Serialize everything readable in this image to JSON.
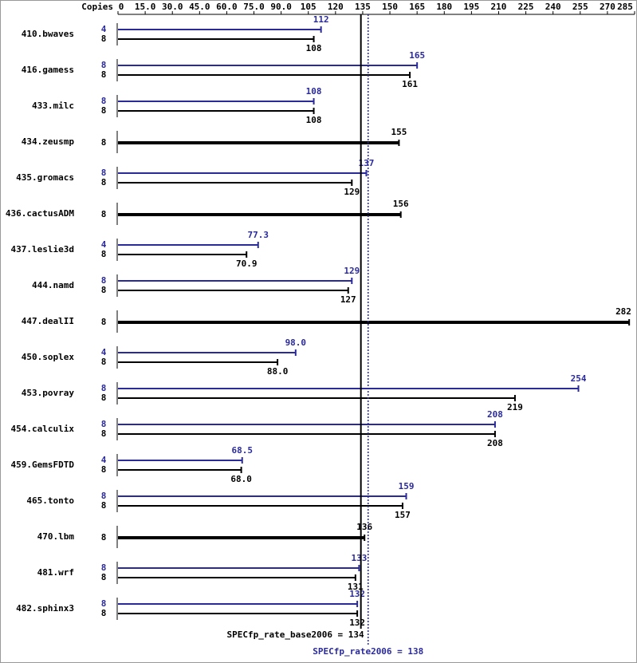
{
  "chart_data": {
    "type": "bar",
    "orientation": "horizontal",
    "copies_header": "Copies",
    "categories": [
      "410.bwaves",
      "416.gamess",
      "433.milc",
      "434.zeusmp",
      "435.gromacs",
      "436.cactusADM",
      "437.leslie3d",
      "444.namd",
      "447.dealII",
      "450.soplex",
      "453.povray",
      "454.calculix",
      "459.GemsFDTD",
      "465.tonto",
      "470.lbm",
      "481.wrf",
      "482.sphinx3"
    ],
    "series": [
      {
        "color": "#2a2a9a",
        "copies": [
          4,
          8,
          8,
          null,
          8,
          null,
          4,
          8,
          null,
          4,
          8,
          8,
          4,
          8,
          null,
          8,
          8
        ],
        "values": [
          112,
          165,
          108,
          null,
          137,
          null,
          77.3,
          129,
          null,
          98,
          254,
          208,
          68.5,
          159,
          null,
          133,
          132
        ],
        "value_labels": [
          "112",
          "165",
          "108",
          null,
          "137",
          null,
          "77.3",
          "129",
          null,
          "98.0",
          "254",
          "208",
          "68.5",
          "159",
          null,
          "133",
          "132"
        ]
      },
      {
        "color": "#000000",
        "copies": [
          8,
          8,
          8,
          8,
          8,
          8,
          8,
          8,
          8,
          8,
          8,
          8,
          8,
          8,
          8,
          8,
          8
        ],
        "values": [
          108,
          161,
          108,
          155,
          129,
          156,
          70.9,
          127,
          282,
          88,
          219,
          208,
          68,
          157,
          136,
          131,
          132
        ],
        "value_labels": [
          "108",
          "161",
          "108",
          "155",
          "129",
          "156",
          "70.9",
          "127",
          "282",
          "88.0",
          "219",
          "208",
          "68.0",
          "157",
          "136",
          "131",
          "132"
        ]
      }
    ],
    "xlim": [
      0,
      285
    ],
    "xticks": [
      0,
      {
        "value": 15,
        "label": "15.0"
      },
      {
        "value": 30,
        "label": "30.0"
      },
      {
        "value": 45,
        "label": "45.0"
      },
      {
        "value": 60,
        "label": "60.0"
      },
      {
        "value": 75,
        "label": "75.0"
      },
      {
        "value": 90,
        "label": "90.0"
      },
      105,
      120,
      135,
      150,
      165,
      180,
      195,
      210,
      225,
      240,
      255,
      270,
      285
    ],
    "reference_lines": [
      {
        "value": 134,
        "label": "SPECfp_rate_base2006 = 134",
        "color": "#000000",
        "style": "solid"
      },
      {
        "value": 138,
        "label": "SPECfp_rate2006 = 138",
        "color": "#2a2a9a",
        "style": "dotted"
      }
    ]
  }
}
